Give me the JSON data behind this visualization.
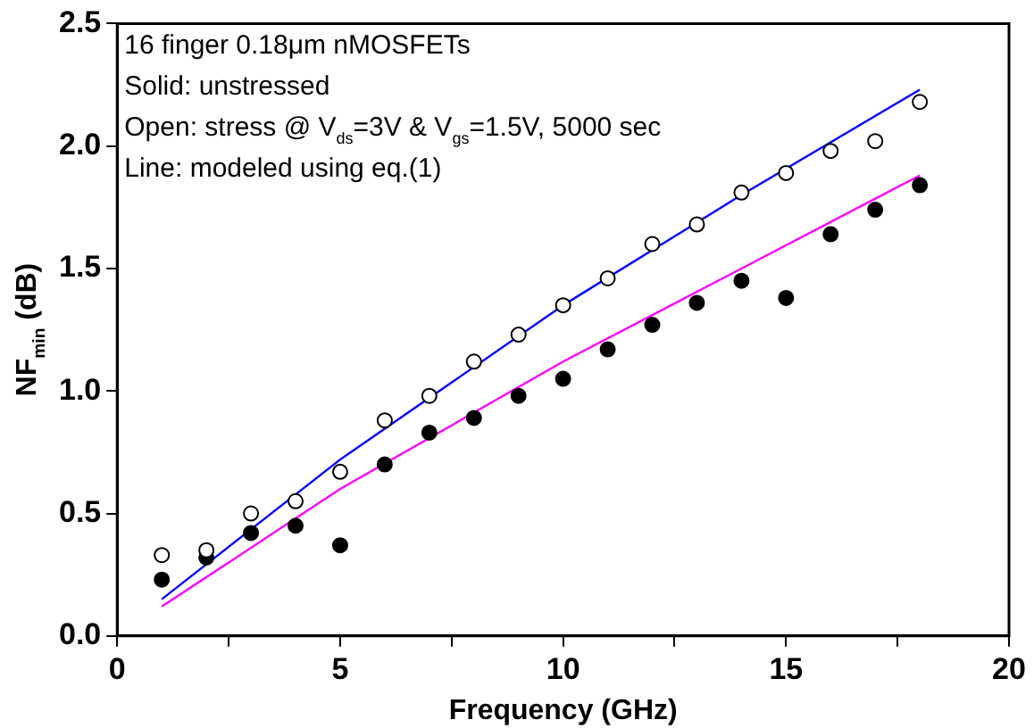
{
  "chart_data": {
    "type": "scatter",
    "xlabel": "Frequency (GHz)",
    "ylabel": "NF$_{min}$ (dB)",
    "annotations": [
      "16 finger 0.18μm nMOSFETs",
      "Solid: unstressed",
      "Open: stress @ V$_{ds}$=3V & V$_{gs}$=1.5V, 5000 sec",
      "Line: modeled using eq.(1)"
    ],
    "xlim": [
      0,
      20
    ],
    "xticks": [
      0,
      {
        "value": 2.5,
        "label": null
      },
      5,
      {
        "value": 7.5,
        "label": null
      },
      10,
      {
        "value": 12.5,
        "label": null
      },
      15,
      {
        "value": 17.5,
        "label": null
      },
      20
    ],
    "ylim": [
      0,
      2.5
    ],
    "yticks": [
      {
        "value": 0,
        "label": "0.0"
      },
      0.5,
      {
        "value": 1,
        "label": "1.0"
      },
      1.5,
      {
        "value": 2,
        "label": "2.0"
      },
      2.5
    ],
    "grid": false,
    "legend": false,
    "marker": "circle",
    "series": [
      {
        "color": "#ffffff",
        "x": [
          1,
          2,
          3,
          4,
          5,
          6,
          7,
          8,
          9,
          10,
          11,
          12,
          13,
          14,
          15,
          16,
          17,
          18
        ],
        "values": [
          0.33,
          0.35,
          0.5,
          0.55,
          0.67,
          0.88,
          0.98,
          1.12,
          1.23,
          1.35,
          1.46,
          1.6,
          1.68,
          1.81,
          1.89,
          1.98,
          2.02,
          2.18
        ]
      },
      {
        "color": "#000000",
        "x": [
          1,
          2,
          3,
          4,
          5,
          6,
          7,
          8,
          9,
          10,
          11,
          12,
          13,
          14,
          15,
          16,
          17,
          18
        ],
        "values": [
          0.23,
          0.32,
          0.42,
          0.45,
          0.37,
          0.7,
          0.83,
          0.89,
          0.98,
          1.05,
          1.17,
          1.27,
          1.36,
          1.45,
          1.38,
          1.64,
          1.74,
          1.84
        ]
      },
      {
        "type": "line",
        "color": "#0000ff",
        "marker": "none",
        "x": [
          1,
          5,
          10,
          14,
          18
        ],
        "values": [
          0.15,
          0.72,
          1.35,
          1.8,
          2.23
        ]
      },
      {
        "type": "line",
        "color": "#ff00ff",
        "marker": "none",
        "x": [
          1,
          5,
          10,
          14,
          18
        ],
        "values": [
          0.12,
          0.6,
          1.12,
          1.5,
          1.88
        ]
      }
    ]
  }
}
